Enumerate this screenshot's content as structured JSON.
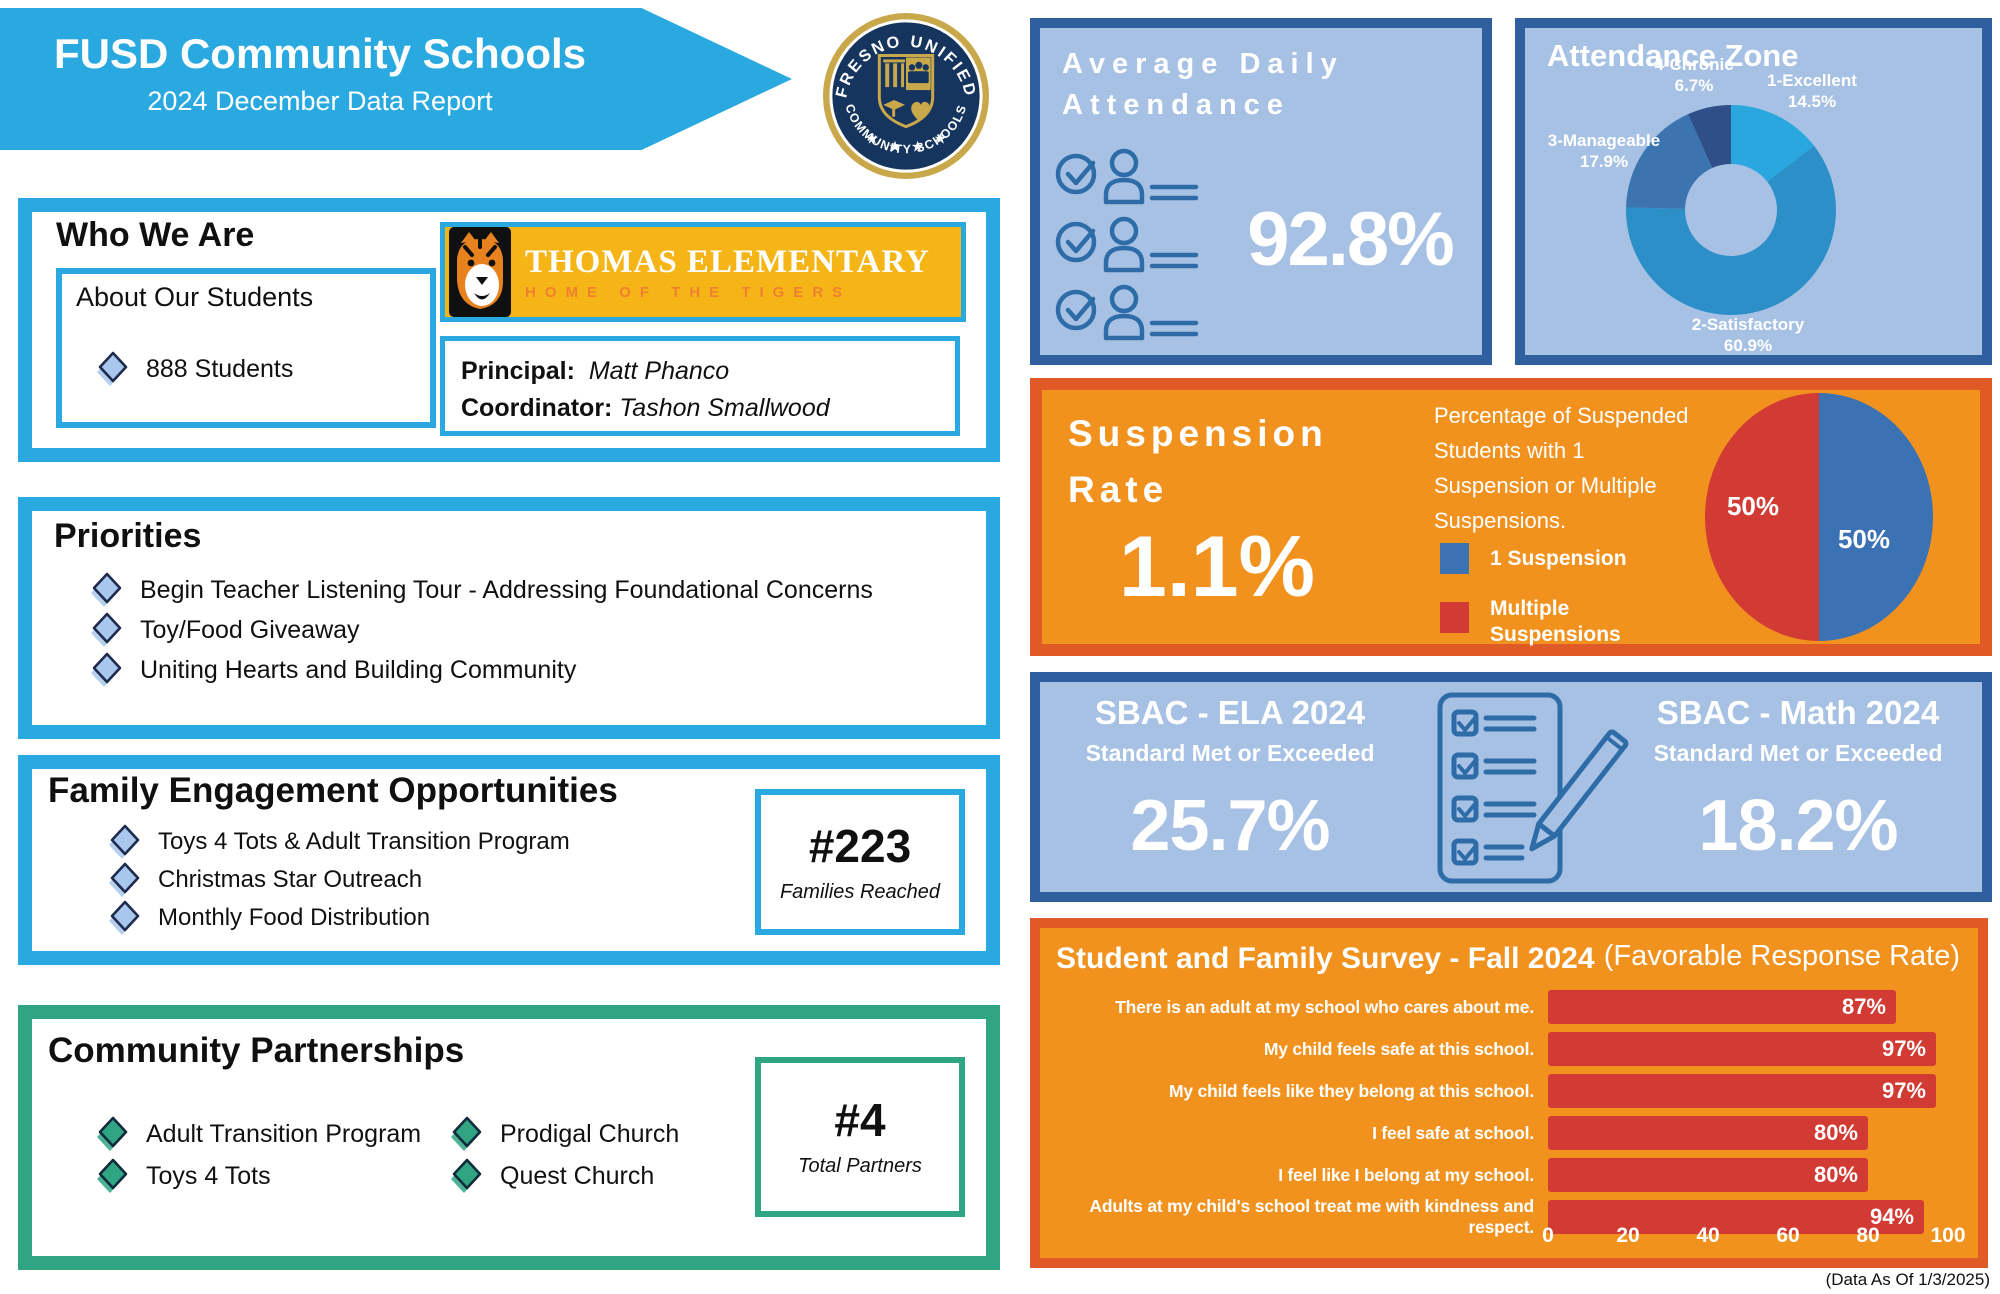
{
  "colors": {
    "accent_blue": "#29A9E0",
    "light_blue_bg": "#A6C1E4",
    "dark_blue_border": "#2F5F9E",
    "icon_blue": "#2E6CA8",
    "orange_bg": "#F2921E",
    "orange_border": "#E05A28",
    "bar_red": "#D23B34",
    "legend_blue": "#3B72B4",
    "green": "#2FA583",
    "gold": "#F6B516",
    "seal_navy": "#16355E",
    "seal_gold": "#C9A84C"
  },
  "banner": {
    "title": "FUSD Community Schools",
    "subtitle": "2024 December Data Report"
  },
  "seal": {
    "top_text": "FRESNO UNIFIED",
    "bottom_text": "COMMUNITY SCHOOLS"
  },
  "who_we_are": {
    "heading": "Who We Are",
    "about_label": "About Our Students",
    "students_count": "888 Students",
    "school_name": "THOMAS ELEMENTARY",
    "school_tagline": "HOME OF THE TIGERS",
    "principal_label": "Principal:",
    "principal_name": "Matt Phanco",
    "coordinator_label": "Coordinator:",
    "coordinator_name": "Tashon Smallwood"
  },
  "priorities": {
    "heading": "Priorities",
    "items": [
      "Begin Teacher Listening Tour - Addressing Foundational Concerns",
      "Toy/Food Giveaway",
      "Uniting Hearts and Building Community"
    ]
  },
  "family_engagement": {
    "heading": "Family Engagement Opportunities",
    "items": [
      "Toys 4 Tots & Adult Transition Program",
      "Christmas Star Outreach",
      "Monthly Food Distribution"
    ],
    "count": "#223",
    "count_label": "Families Reached"
  },
  "community_partnerships": {
    "heading": "Community Partnerships",
    "items": [
      "Adult Transition Program",
      "Toys 4 Tots",
      "Prodigal Church",
      "Quest Church"
    ],
    "count": "#4",
    "count_label": "Total Partners"
  },
  "attendance": {
    "title_lines": [
      "Average Daily",
      "Attendance"
    ],
    "value": "92.8%"
  },
  "suspension": {
    "title_lines": [
      "Suspension",
      "Rate"
    ],
    "value": "1.1%",
    "description": "Percentage of Suspended Students with 1 Suspension or Multiple Suspensions.",
    "legend": [
      {
        "label": "1 Suspension",
        "color": "#3B72B4"
      },
      {
        "label": "Multiple Suspensions",
        "color": "#D23B34"
      }
    ]
  },
  "sbac": {
    "ela": {
      "title": "SBAC - ELA 2024",
      "subtitle": "Standard Met or Exceeded",
      "value": "25.7%"
    },
    "math": {
      "title": "SBAC - Math 2024",
      "subtitle": "Standard Met or Exceeded",
      "value": "18.2%"
    }
  },
  "survey": {
    "title": "Student and Family Survey - Fall 2024",
    "subtitle": "(Favorable Response Rate)"
  },
  "footer": {
    "data_as_of": "(Data As Of 1/3/2025)"
  },
  "chart_data": [
    {
      "id": "attendance_zone",
      "type": "pie",
      "style": "donut",
      "title": "Attendance Zone",
      "labels": [
        "1-Excellent",
        "2-Satisfactory",
        "3-Manageable",
        "4-Chronic"
      ],
      "values": [
        14.5,
        60.9,
        17.9,
        6.7
      ],
      "value_labels": [
        "14.5%",
        "60.9%",
        "17.9%",
        "6.7%"
      ],
      "colors": [
        "#2AA7DF",
        "#2D8FC8",
        "#3B74AF",
        "#2E4F88"
      ],
      "legend_position": "around"
    },
    {
      "id": "suspension_split",
      "type": "pie",
      "labels": [
        "1 Suspension",
        "Multiple Suspensions"
      ],
      "values": [
        50,
        50
      ],
      "value_labels": [
        "50%",
        "50%"
      ],
      "colors": [
        "#3B72B4",
        "#D23B34"
      ]
    },
    {
      "id": "survey_results",
      "type": "bar",
      "orientation": "horizontal",
      "title": "Student and Family Survey - Fall 2024",
      "categories": [
        "There is an adult at my school who cares about me.",
        "My child feels safe at this school.",
        "My child feels like they belong at this school.",
        "I feel safe at school.",
        "I feel like I belong at my school.",
        "Adults at my child's school treat me with kindness and respect."
      ],
      "values": [
        87,
        97,
        97,
        80,
        80,
        94
      ],
      "xlim": [
        0,
        100
      ],
      "ticks": [
        0,
        20,
        40,
        60,
        80,
        100
      ],
      "bar_color": "#D23B34"
    }
  ]
}
